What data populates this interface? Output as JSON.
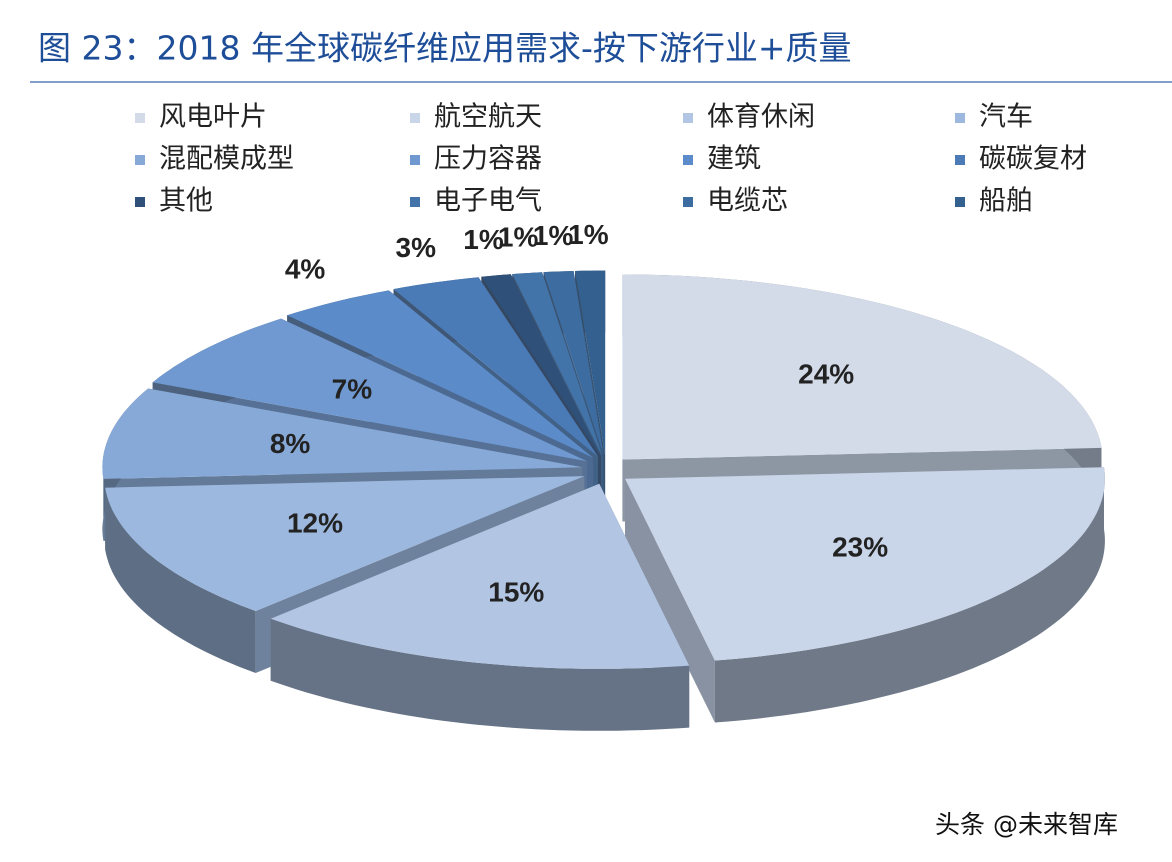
{
  "chart_data": {
    "type": "pie",
    "title": "图 23：2018 年全球碳纤维应用需求-按下游行业+质量",
    "categories": [
      "风电叶片",
      "航空航天",
      "体育休闲",
      "汽车",
      "混配模成型",
      "压力容器",
      "建筑",
      "碳碳复材",
      "其他",
      "电子电气",
      "电缆芯",
      "船舶"
    ],
    "values": [
      24,
      23,
      15,
      12,
      8,
      7,
      4,
      3,
      1,
      1,
      1,
      1
    ],
    "value_labels": [
      "24%",
      "23%",
      "15%",
      "12%",
      "8%",
      "7%",
      "4%",
      "3%",
      "1%",
      "1%",
      "1%",
      "1%"
    ],
    "colors": [
      "#d3dbe9",
      "#c9d5e8",
      "#b2c5e3",
      "#9cb8df",
      "#87a9d8",
      "#6f99d0",
      "#5c8bc9",
      "#4b7bb7",
      "#2f5079",
      "#4274aa",
      "#3d6ca0",
      "#34608f"
    ],
    "watermark": "头条 @未来智库"
  }
}
